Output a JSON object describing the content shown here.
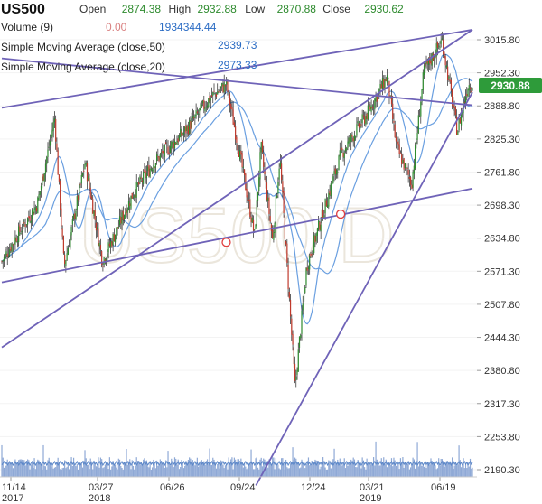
{
  "header": {
    "symbol": "US500",
    "open_label": "Open",
    "open_value": "2874.38",
    "high_label": "High",
    "high_value": "2932.88",
    "low_label": "Low",
    "low_value": "2870.88",
    "close_label": "Close",
    "close_value": "2930.62",
    "volume_label": "Volume (9)",
    "volume_a": "0.00",
    "volume_b": "1934344.44",
    "sma50_label": "Simple Moving Average (close,50)",
    "sma50_value": "2939.73",
    "sma20_label": "Simple Moving Average (close,20)",
    "sma20_value": "2973.33"
  },
  "watermark": "US500 D",
  "price_tag": "2930.88",
  "colors": {
    "candle_up": "#2e8b2e",
    "candle_down": "#c0392b",
    "sma": "#6a9fe0",
    "trendline": "#6f63b8",
    "volume": "#8fa9d6",
    "tag_bg": "#2e9b3a",
    "marker": "#e04040",
    "watermark": "#ebe6dc"
  },
  "chart_data": {
    "type": "candlestick",
    "yticks": [
      "3015.80",
      "2952.30",
      "2888.80",
      "2825.30",
      "2761.80",
      "2698.30",
      "2634.80",
      "2571.30",
      "2507.80",
      "2444.30",
      "2380.80",
      "2317.30",
      "2253.80",
      "2190.30"
    ],
    "xticks": [
      {
        "top": "11/14",
        "bottom": "2017"
      },
      {
        "top": "03/27",
        "bottom": "2018"
      },
      {
        "top": "06/26",
        "bottom": ""
      },
      {
        "top": "09/24",
        "bottom": ""
      },
      {
        "top": "12/24",
        "bottom": ""
      },
      {
        "top": "03/21",
        "bottom": "2019"
      },
      {
        "top": "06/19",
        "bottom": ""
      }
    ],
    "price_anchors": [
      [
        "11/14/2017",
        2590
      ],
      [
        "12/05/2017",
        2640
      ],
      [
        "01/02/2018",
        2700
      ],
      [
        "01/26/2018",
        2865
      ],
      [
        "02/08/2018",
        2580
      ],
      [
        "03/09/2018",
        2780
      ],
      [
        "04/02/2018",
        2590
      ],
      [
        "05/14/2018",
        2720
      ],
      [
        "06/12/2018",
        2780
      ],
      [
        "07/25/2018",
        2840
      ],
      [
        "08/29/2018",
        2905
      ],
      [
        "09/20/2018",
        2930
      ],
      [
        "10/10/2018",
        2785
      ],
      [
        "10/29/2018",
        2640
      ],
      [
        "11/07/2018",
        2810
      ],
      [
        "11/23/2018",
        2630
      ],
      [
        "12/03/2018",
        2790
      ],
      [
        "12/24/2018",
        2350
      ],
      [
        "01/09/2019",
        2580
      ],
      [
        "02/25/2019",
        2795
      ],
      [
        "04/01/2019",
        2870
      ],
      [
        "04/30/2019",
        2945
      ],
      [
        "05/13/2019",
        2810
      ],
      [
        "06/03/2019",
        2740
      ],
      [
        "06/20/2019",
        2955
      ],
      [
        "07/15/2019",
        3015
      ],
      [
        "08/05/2019",
        2840
      ],
      [
        "08/20/2019",
        2930
      ]
    ],
    "trendlines": [
      {
        "x0": "11/14/2017",
        "y0": 2885,
        "x1": "08/26/2019",
        "y1": 3035
      },
      {
        "x0": "11/14/2017",
        "y0": 2980,
        "x1": "08/26/2019",
        "y1": 2890
      },
      {
        "x0": "11/14/2017",
        "y0": 2550,
        "x1": "08/26/2019",
        "y1": 2730
      },
      {
        "x0": "11/14/2017",
        "y0": 2425,
        "x1": "08/26/2019",
        "y1": 3035
      },
      {
        "x0": "10/31/2018",
        "y0": 2160,
        "x1": "08/26/2019",
        "y1": 2915
      }
    ],
    "markers": [
      {
        "x": "09/20/2018",
        "y": 2627
      },
      {
        "x": "02/25/2019",
        "y": 2681
      }
    ]
  }
}
